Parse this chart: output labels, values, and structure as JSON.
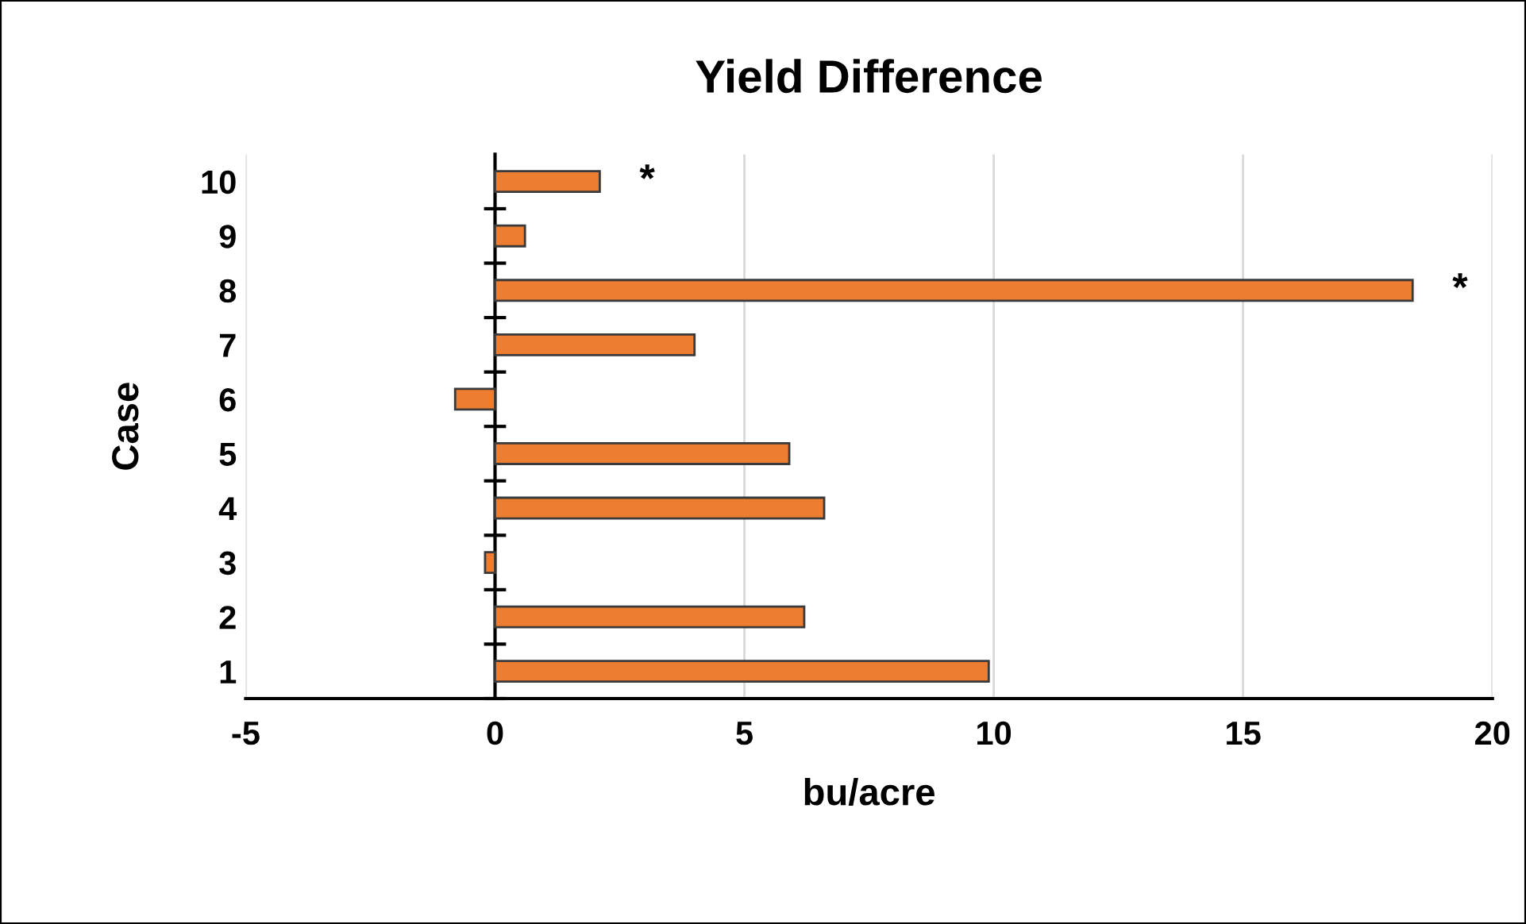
{
  "chart_data": {
    "type": "bar",
    "orientation": "horizontal",
    "title": "Yield Difference",
    "xlabel": "bu/acre",
    "ylabel": "Case",
    "categories": [
      "10",
      "9",
      "8",
      "7",
      "6",
      "5",
      "4",
      "3",
      "2",
      "1"
    ],
    "series": [
      {
        "color": "#ed7d31",
        "values": [
          2.1,
          0.6,
          18.4,
          4.0,
          -0.8,
          5.9,
          6.6,
          -0.2,
          6.2,
          9.9
        ]
      }
    ],
    "xlim": [
      -5,
      20
    ],
    "xticks": [
      -5,
      0,
      5,
      10,
      15,
      20
    ],
    "grid": "x",
    "annotations": [
      {
        "text": "*",
        "x": 2.1,
        "y": "10"
      },
      {
        "text": "*",
        "x": 18.4,
        "y": "8"
      }
    ]
  }
}
